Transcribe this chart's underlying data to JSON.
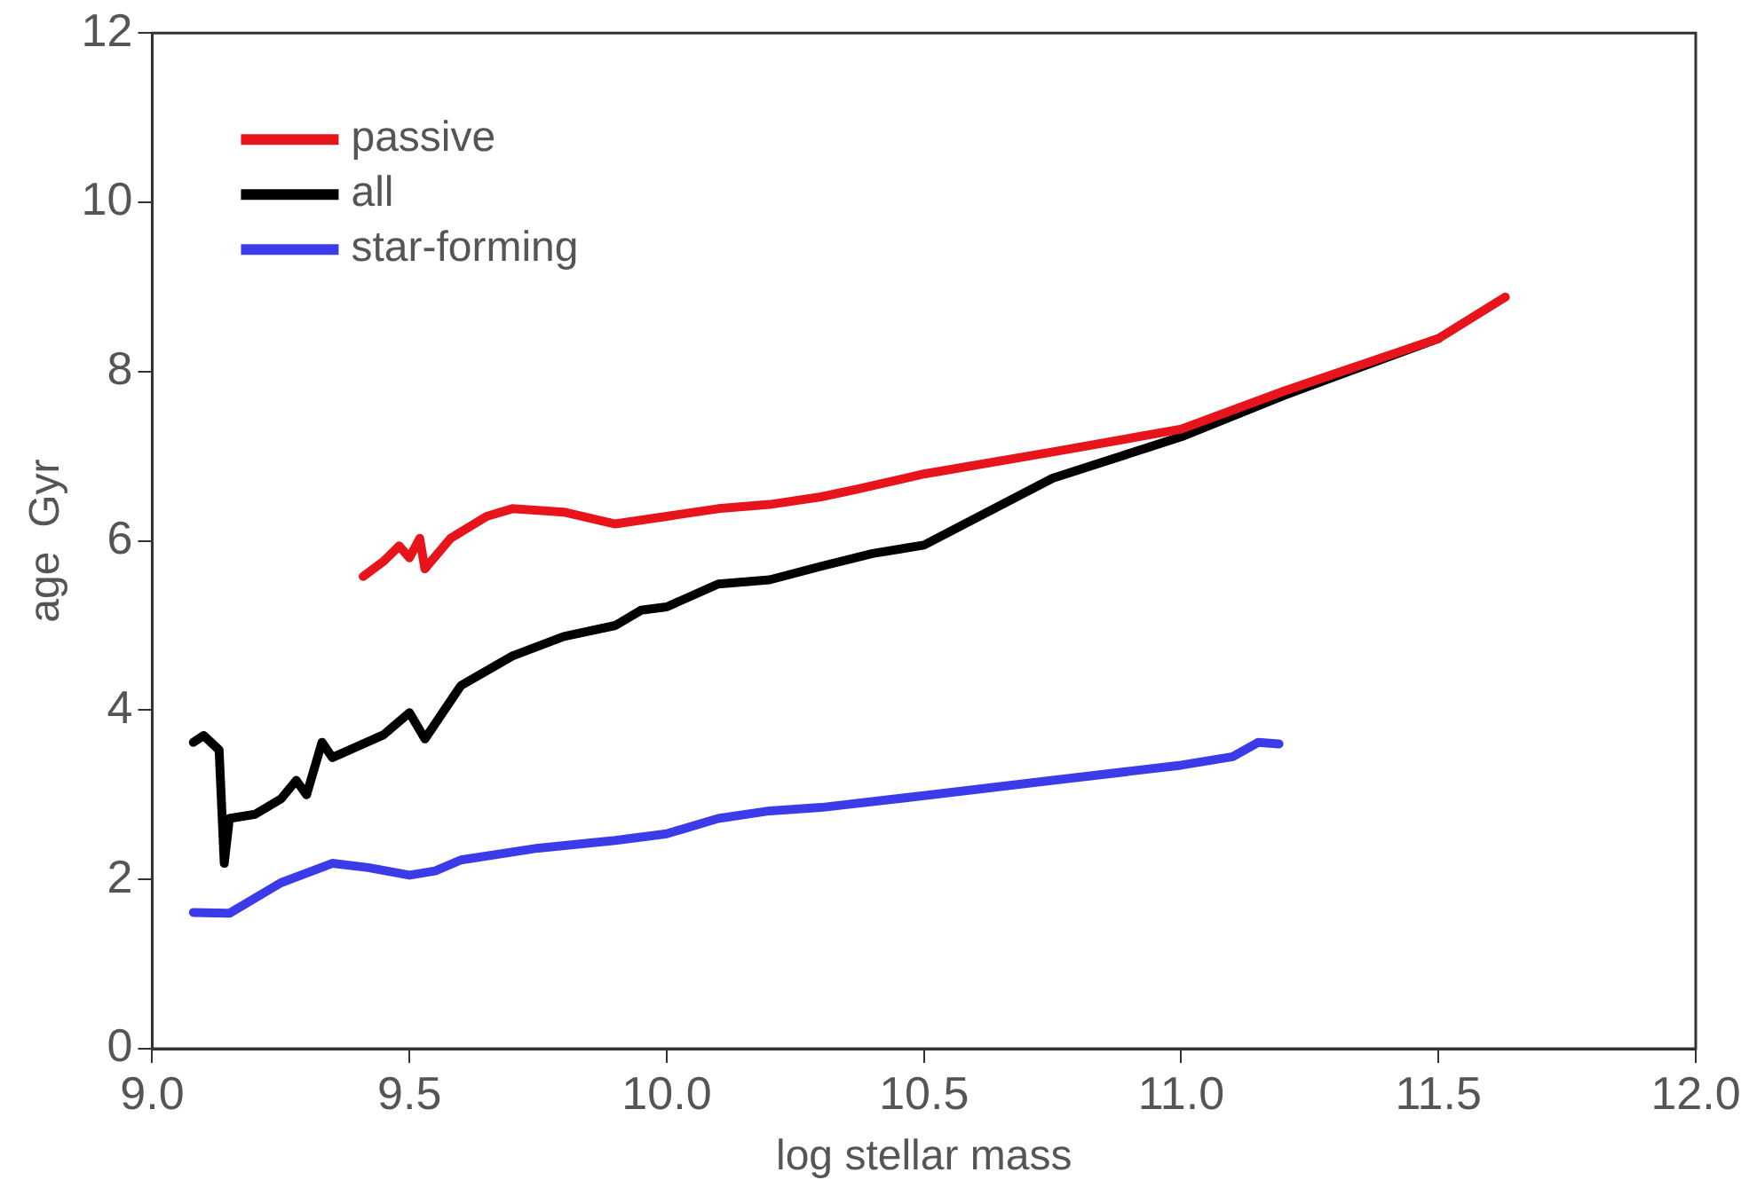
{
  "chart_data": {
    "type": "line",
    "xlabel": "log stellar mass",
    "ylabel": "age  Gyr",
    "xlim": [
      9.0,
      12.0
    ],
    "ylim": [
      0,
      12
    ],
    "xticks": [
      {
        "value": 9.0,
        "label": "9.0"
      },
      {
        "value": 9.5,
        "label": "9.5"
      },
      {
        "value": 10.0,
        "label": "10.0"
      },
      {
        "value": 10.5,
        "label": "10.5"
      },
      {
        "value": 11.0,
        "label": "11.0"
      },
      {
        "value": 11.5,
        "label": "11.5"
      },
      {
        "value": 12.0,
        "label": "12.0"
      }
    ],
    "yticks": [
      0,
      2,
      4,
      6,
      8,
      10,
      12
    ],
    "grid": false,
    "legend": "top left",
    "marker": "none",
    "line_style": "solid",
    "series": [
      {
        "name": "passive",
        "color": "#e8141c",
        "x": [
          9.41,
          9.45,
          9.48,
          9.5,
          9.52,
          9.53,
          9.58,
          9.65,
          9.7,
          9.8,
          9.9,
          10.0,
          10.1,
          10.2,
          10.3,
          10.37,
          10.5,
          10.75,
          11.0,
          11.2,
          11.5,
          11.63
        ],
        "values": [
          5.58,
          5.76,
          5.94,
          5.8,
          6.03,
          5.67,
          6.03,
          6.29,
          6.38,
          6.34,
          6.2,
          6.29,
          6.38,
          6.43,
          6.52,
          6.61,
          6.79,
          7.05,
          7.32,
          7.77,
          8.39,
          8.88
        ]
      },
      {
        "name": "all",
        "color": "#000000",
        "x": [
          9.08,
          9.1,
          9.13,
          9.14,
          9.15,
          9.2,
          9.25,
          9.28,
          9.3,
          9.33,
          9.35,
          9.45,
          9.5,
          9.53,
          9.6,
          9.7,
          9.8,
          9.9,
          9.95,
          10.0,
          10.1,
          10.2,
          10.3,
          10.4,
          10.5,
          10.75,
          11.0,
          11.2,
          11.5
        ],
        "values": [
          3.62,
          3.7,
          3.53,
          2.19,
          2.72,
          2.77,
          2.95,
          3.17,
          3.0,
          3.62,
          3.44,
          3.71,
          3.97,
          3.66,
          4.29,
          4.64,
          4.87,
          5.0,
          5.18,
          5.22,
          5.49,
          5.54,
          5.7,
          5.85,
          5.95,
          6.74,
          7.23,
          7.72,
          8.39
        ]
      },
      {
        "name": "star-forming",
        "color": "#3b3bea",
        "x": [
          9.08,
          9.15,
          9.25,
          9.35,
          9.42,
          9.5,
          9.55,
          9.6,
          9.75,
          9.9,
          10.0,
          10.1,
          10.2,
          10.3,
          10.5,
          10.75,
          11.0,
          11.1,
          11.15,
          11.19
        ],
        "values": [
          1.61,
          1.6,
          1.96,
          2.19,
          2.14,
          2.05,
          2.1,
          2.23,
          2.37,
          2.46,
          2.54,
          2.72,
          2.81,
          2.85,
          2.99,
          3.17,
          3.35,
          3.45,
          3.62,
          3.6
        ]
      }
    ]
  }
}
